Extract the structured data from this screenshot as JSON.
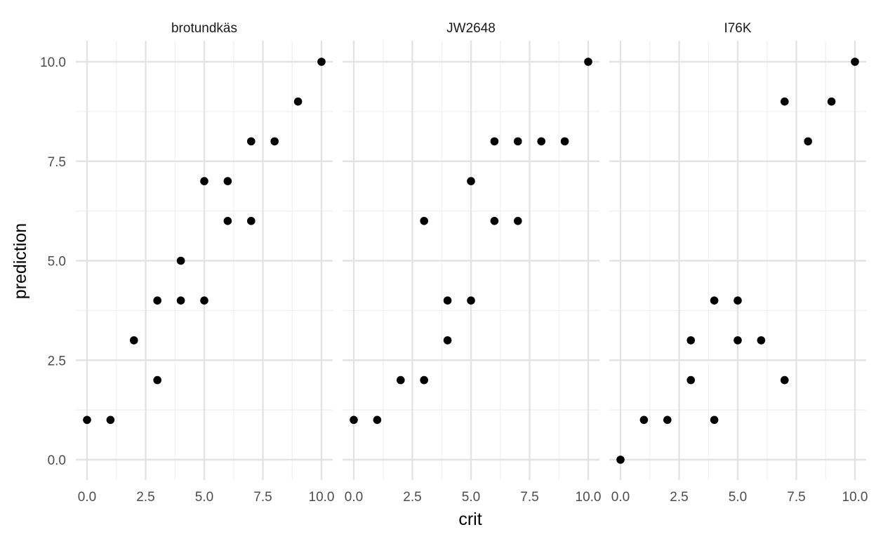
{
  "chart_data": {
    "type": "scatter",
    "xlabel": "crit",
    "ylabel": "prediction",
    "xlim": [
      0,
      10
    ],
    "ylim": [
      0,
      10
    ],
    "x_ticks": [
      "0.0",
      "2.5",
      "5.0",
      "7.5",
      "10.0"
    ],
    "y_ticks": [
      "0.0",
      "2.5",
      "5.0",
      "7.5",
      "10.0"
    ],
    "grid": true,
    "point_color": "#000000",
    "panels": [
      {
        "name": "brotundkäs",
        "points": [
          [
            0,
            1
          ],
          [
            1,
            1
          ],
          [
            2,
            3
          ],
          [
            3,
            2
          ],
          [
            3,
            4
          ],
          [
            4,
            4
          ],
          [
            4,
            5
          ],
          [
            5,
            4
          ],
          [
            5,
            7
          ],
          [
            6,
            6
          ],
          [
            6,
            7
          ],
          [
            7,
            6
          ],
          [
            7,
            8
          ],
          [
            8,
            8
          ],
          [
            9,
            9
          ],
          [
            10,
            10
          ]
        ]
      },
      {
        "name": "JW2648",
        "points": [
          [
            0,
            1
          ],
          [
            1,
            1
          ],
          [
            2,
            2
          ],
          [
            3,
            2
          ],
          [
            3,
            6
          ],
          [
            4,
            3
          ],
          [
            4,
            4
          ],
          [
            5,
            4
          ],
          [
            5,
            7
          ],
          [
            6,
            6
          ],
          [
            6,
            8
          ],
          [
            7,
            6
          ],
          [
            7,
            8
          ],
          [
            8,
            8
          ],
          [
            9,
            8
          ],
          [
            10,
            10
          ]
        ]
      },
      {
        "name": "I76K",
        "points": [
          [
            0,
            0
          ],
          [
            1,
            1
          ],
          [
            2,
            1
          ],
          [
            3,
            2
          ],
          [
            3,
            3
          ],
          [
            4,
            1
          ],
          [
            4,
            4
          ],
          [
            5,
            3
          ],
          [
            5,
            4
          ],
          [
            6,
            3
          ],
          [
            7,
            2
          ],
          [
            7,
            9
          ],
          [
            8,
            8
          ],
          [
            9,
            9
          ],
          [
            10,
            10
          ]
        ]
      }
    ]
  }
}
